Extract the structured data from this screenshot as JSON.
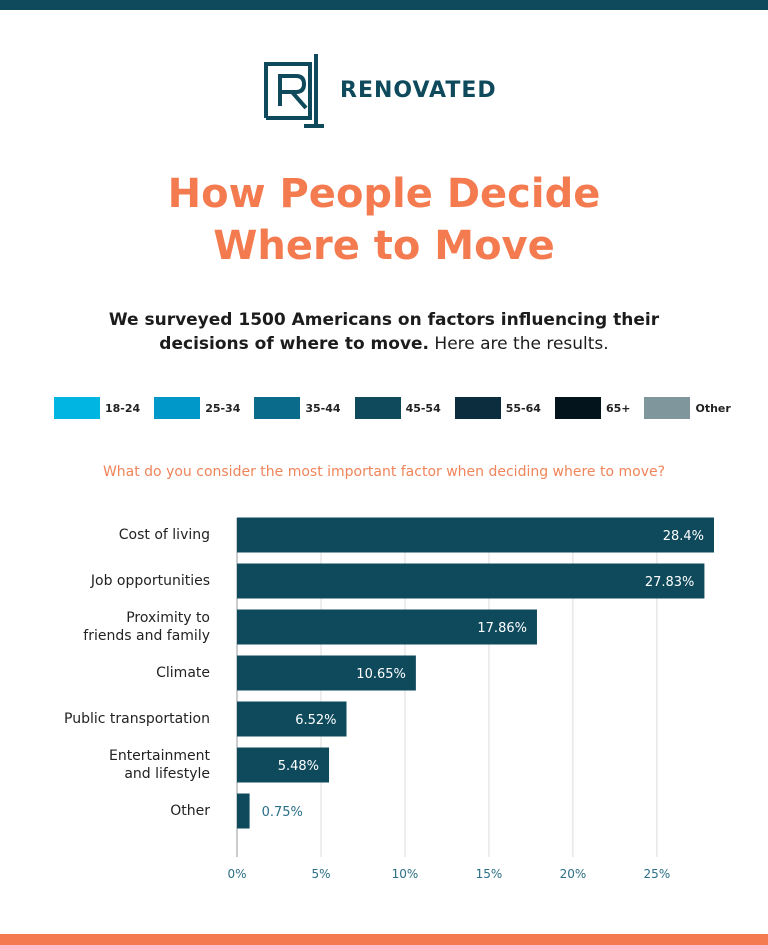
{
  "brand": "RENOVATED",
  "title": "How People Decide\nWhere to Move",
  "subtitle_bold": "We surveyed 1500 Americans on factors influencing their decisions of where to move.",
  "subtitle_rest": "Here are the results.",
  "legend": [
    {
      "label": "18-24",
      "color": "#00b5e2"
    },
    {
      "label": "25-34",
      "color": "#0098c8"
    },
    {
      "label": "35-44",
      "color": "#0a6c8a"
    },
    {
      "label": "45-54",
      "color": "#0e4a5c"
    },
    {
      "label": "55-64",
      "color": "#0b2d3e"
    },
    {
      "label": "65+",
      "color": "#04141d"
    },
    {
      "label": "Other",
      "color": "#7f969c"
    }
  ],
  "chart_data": {
    "type": "hbar",
    "title": "What do you consider the most important factor when deciding where to move?",
    "categories": [
      "Cost of living",
      "Job opportunities",
      "Proximity to\nfriends and family",
      "Climate",
      "Public transportation",
      "Entertainment\nand lifestyle",
      "Other"
    ],
    "values": [
      28.4,
      27.83,
      17.86,
      10.65,
      6.52,
      5.48,
      0.75
    ],
    "value_labels": [
      "28.4%",
      "27.83%",
      "17.86%",
      "10.65%",
      "6.52%",
      "5.48%",
      "0.75%"
    ],
    "color": "#0e4a5c",
    "xlim": [
      0,
      28.4
    ],
    "xticks": [
      {
        "value": 0,
        "label": "0%"
      },
      {
        "value": 5,
        "label": "5%"
      },
      {
        "value": 10,
        "label": "10%"
      },
      {
        "value": 15,
        "label": "15%"
      },
      {
        "value": 20,
        "label": "20%"
      },
      {
        "value": 25,
        "label": "25%"
      }
    ],
    "grid": true
  }
}
